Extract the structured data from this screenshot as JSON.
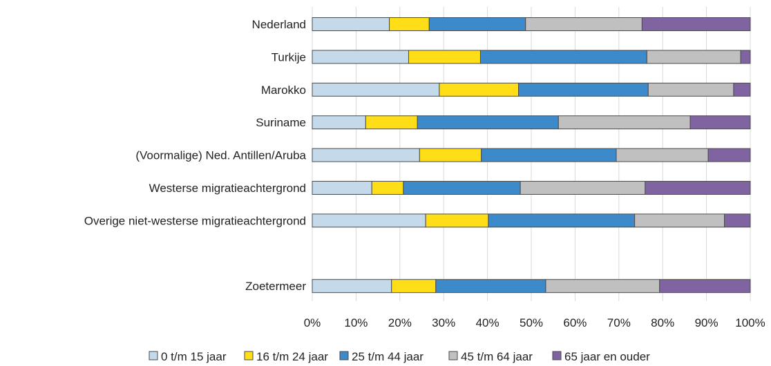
{
  "chart_data": {
    "type": "bar",
    "orientation": "horizontal",
    "stacked": true,
    "percent_stacked": true,
    "categories": [
      "Nederland",
      "Turkije",
      "Marokko",
      "Suriname",
      "(Voormalige) Ned. Antillen/Aruba",
      "Westerse migratieachtergrond",
      "Overige niet-westerse migratieachtergrond",
      "",
      "Zoetermeer"
    ],
    "series": [
      {
        "name": "0 t/m 15 jaar",
        "color": "#c4d9ea",
        "values": [
          17.6,
          22.0,
          29.0,
          12.2,
          24.5,
          13.6,
          25.9,
          null,
          18.1
        ]
      },
      {
        "name": "16 t/m 24 jaar",
        "color": "#ffde17",
        "values": [
          9.1,
          16.4,
          18.1,
          11.8,
          14.1,
          7.2,
          14.3,
          null,
          10.1
        ]
      },
      {
        "name": "25 t/m 44 jaar",
        "color": "#3c8ac9",
        "values": [
          22.0,
          38.0,
          29.6,
          32.2,
          30.8,
          26.7,
          33.4,
          null,
          25.1
        ]
      },
      {
        "name": "45 t/m 64 jaar",
        "color": "#c0c0c0",
        "values": [
          26.6,
          21.4,
          19.5,
          30.1,
          21.0,
          28.5,
          20.5,
          null,
          26.0
        ]
      },
      {
        "name": "65 jaar en ouder",
        "color": "#8064a2",
        "values": [
          24.7,
          2.2,
          3.8,
          13.7,
          9.6,
          24.0,
          5.9,
          null,
          20.7
        ]
      }
    ],
    "xlim": [
      0,
      100
    ],
    "x_ticks": [
      "0%",
      "10%",
      "20%",
      "30%",
      "40%",
      "50%",
      "60%",
      "70%",
      "80%",
      "90%",
      "100%"
    ],
    "grid": true,
    "legend_position": "bottom"
  }
}
